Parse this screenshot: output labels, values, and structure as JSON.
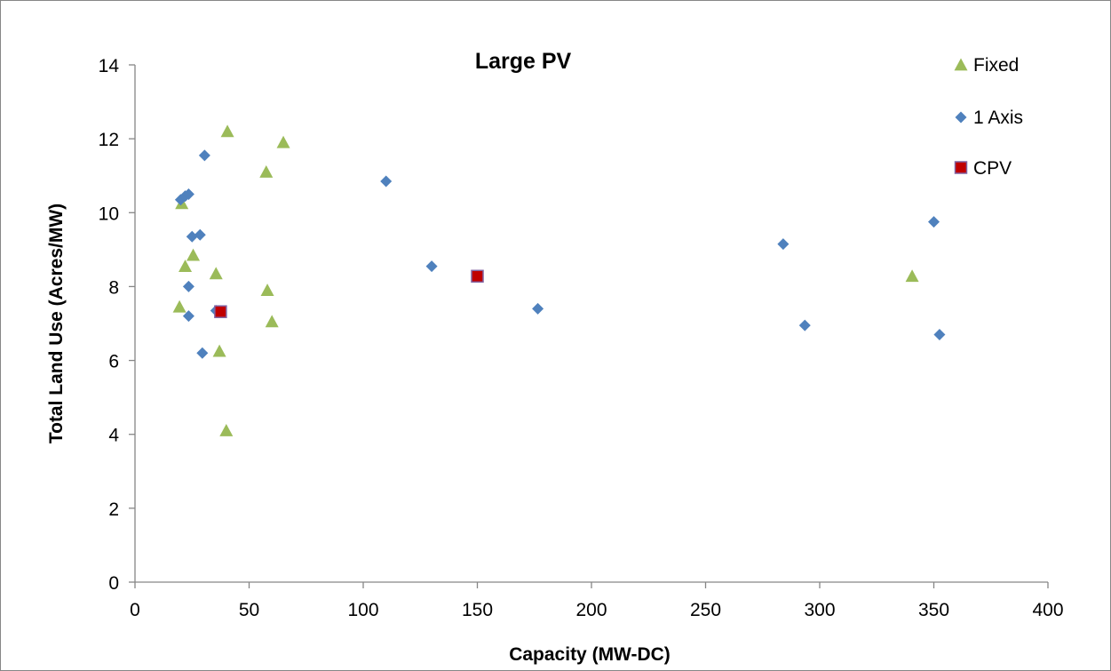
{
  "chart_data": {
    "type": "scatter",
    "title": "Large PV",
    "xlabel": "Capacity (MW-DC)",
    "ylabel": "Total Land Use (Acres/MW)",
    "xlim": [
      0,
      400
    ],
    "ylim": [
      0,
      14
    ],
    "xticks": [
      0,
      50,
      100,
      150,
      200,
      250,
      300,
      350,
      400
    ],
    "yticks": [
      0,
      2,
      4,
      6,
      8,
      10,
      12,
      14
    ],
    "grid": false,
    "legend_position": "top-right",
    "series": [
      {
        "name": "Fixed",
        "marker": "triangle",
        "color": "#9BBB59",
        "points": [
          [
            40.5,
            12.2
          ],
          [
            65.0,
            11.9
          ],
          [
            57.5,
            11.1
          ],
          [
            20.5,
            10.25
          ],
          [
            25.5,
            8.85
          ],
          [
            22.0,
            8.55
          ],
          [
            35.5,
            8.35
          ],
          [
            58.0,
            7.9
          ],
          [
            19.5,
            7.45
          ],
          [
            60.0,
            7.05
          ],
          [
            37.0,
            6.25
          ],
          [
            40.0,
            4.1
          ],
          [
            340.5,
            8.28
          ]
        ]
      },
      {
        "name": "1 Axis",
        "marker": "diamond",
        "color": "#4F81BD",
        "points": [
          [
            30.5,
            11.55
          ],
          [
            20.0,
            10.35
          ],
          [
            22.0,
            10.45
          ],
          [
            23.5,
            10.5
          ],
          [
            25.0,
            9.35
          ],
          [
            28.5,
            9.4
          ],
          [
            23.5,
            8.0
          ],
          [
            35.5,
            7.35
          ],
          [
            23.5,
            7.2
          ],
          [
            29.5,
            6.2
          ],
          [
            110.0,
            10.85
          ],
          [
            130.0,
            8.55
          ],
          [
            176.5,
            7.4
          ],
          [
            284.0,
            9.15
          ],
          [
            293.5,
            6.95
          ],
          [
            350.0,
            9.75
          ],
          [
            352.5,
            6.7
          ]
        ]
      },
      {
        "name": "CPV",
        "marker": "square",
        "color": "#C00000",
        "edge_color": "#8064A2",
        "points": [
          [
            37.5,
            7.32
          ],
          [
            150.0,
            8.28
          ]
        ]
      }
    ]
  }
}
